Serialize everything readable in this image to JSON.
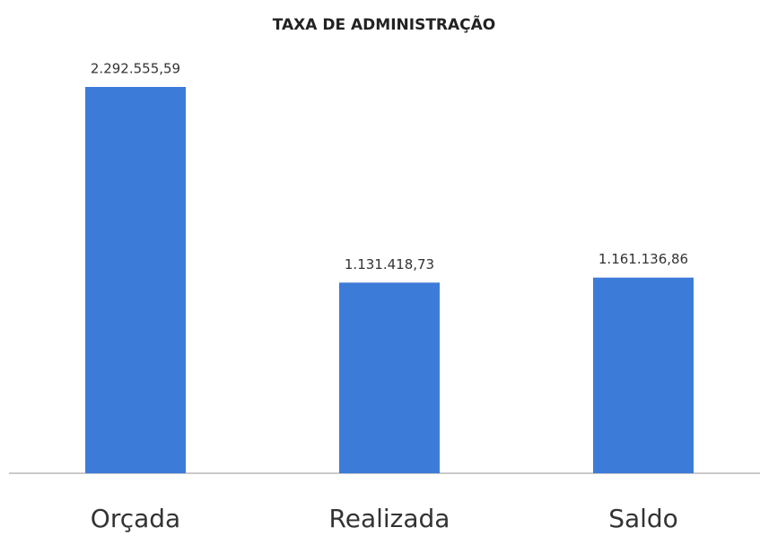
{
  "chart_data": {
    "type": "bar",
    "title": "TAXA DE ADMINISTRAÇÃO",
    "categories": [
      "Orçada",
      "Realizada",
      "Saldo"
    ],
    "values": [
      2292555.59,
      1131418.73,
      1161136.86
    ],
    "value_labels": [
      "2.292.555,59",
      "1.131.418,73",
      "1.161.136,86"
    ],
    "color": "#3d7bd9"
  }
}
